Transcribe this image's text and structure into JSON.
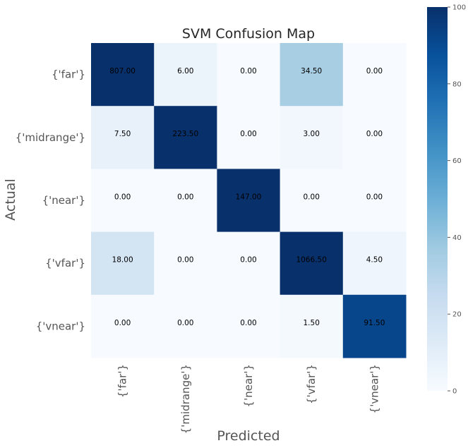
{
  "chart_data": {
    "type": "heatmap",
    "title": "SVM Confusion Map",
    "xlabel": "Predicted",
    "ylabel": "Actual",
    "x_categories": [
      "{'far'}",
      "{'midrange'}",
      "{'near'}",
      "{'vfar'}",
      "{'vnear'}"
    ],
    "y_categories": [
      "{'far'}",
      "{'midrange'}",
      "{'near'}",
      "{'vfar'}",
      "{'vnear'}"
    ],
    "values": [
      [
        807.0,
        6.0,
        0.0,
        34.5,
        0.0
      ],
      [
        7.5,
        223.5,
        0.0,
        3.0,
        0.0
      ],
      [
        0.0,
        0.0,
        147.0,
        0.0,
        0.0
      ],
      [
        18.0,
        0.0,
        0.0,
        1066.5,
        4.5
      ],
      [
        0.0,
        0.0,
        0.0,
        1.5,
        91.5
      ]
    ],
    "value_labels": [
      [
        "807.00",
        "6.00",
        "0.00",
        "34.50",
        "0.00"
      ],
      [
        "7.50",
        "223.50",
        "0.00",
        "3.00",
        "0.00"
      ],
      [
        "0.00",
        "0.00",
        "147.00",
        "0.00",
        "0.00"
      ],
      [
        "18.00",
        "0.00",
        "0.00",
        "1066.50",
        "4.50"
      ],
      [
        "0.00",
        "0.00",
        "0.00",
        "1.50",
        "91.50"
      ]
    ],
    "colorbar": {
      "min": 0,
      "max": 100,
      "ticks": [
        0,
        20,
        40,
        60,
        80,
        100
      ],
      "tick_labels": [
        "0",
        "20",
        "40",
        "60",
        "80",
        "100"
      ],
      "colormap": "Blues"
    },
    "colors": {
      "low": "#f7fbff",
      "high": "#08306b"
    }
  }
}
